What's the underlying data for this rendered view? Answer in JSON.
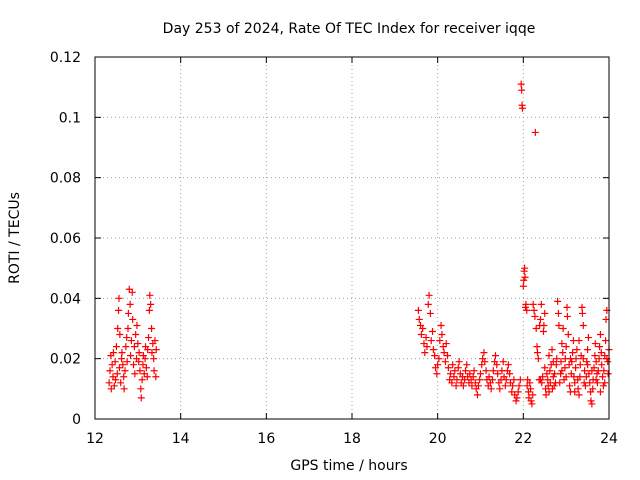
{
  "chart_data": {
    "type": "scatter",
    "title": "Day 253 of 2024, Rate Of TEC Index for receiver iqqe",
    "xlabel": "GPS time / hours",
    "ylabel": "ROTI / TECUs",
    "xlim": [
      12,
      24
    ],
    "ylim": [
      0,
      0.12
    ],
    "xticks": [
      12,
      14,
      16,
      18,
      20,
      22,
      24
    ],
    "yticks": [
      0,
      0.02,
      0.04,
      0.06,
      0.08,
      0.1,
      0.12
    ],
    "ytick_labels": [
      "0",
      "0.02",
      "0.04",
      "0.06",
      "0.08",
      "0.1",
      "0.12"
    ],
    "grid": true,
    "marker": "+",
    "color": "#ff0000",
    "series": [
      {
        "name": "ROTI",
        "points": [
          [
            12.33,
            0.012
          ],
          [
            12.35,
            0.016
          ],
          [
            12.37,
            0.021
          ],
          [
            12.38,
            0.01
          ],
          [
            12.4,
            0.018
          ],
          [
            12.42,
            0.014
          ],
          [
            12.43,
            0.022
          ],
          [
            12.45,
            0.011
          ],
          [
            12.47,
            0.019
          ],
          [
            12.48,
            0.013
          ],
          [
            12.5,
            0.024
          ],
          [
            12.52,
            0.015
          ],
          [
            12.53,
            0.03
          ],
          [
            12.55,
            0.036
          ],
          [
            12.56,
            0.04
          ],
          [
            12.57,
            0.017
          ],
          [
            12.58,
            0.028
          ],
          [
            12.6,
            0.012
          ],
          [
            12.62,
            0.02
          ],
          [
            12.63,
            0.022
          ],
          [
            12.65,
            0.018
          ],
          [
            12.67,
            0.014
          ],
          [
            12.68,
            0.01
          ],
          [
            12.7,
            0.016
          ],
          [
            12.72,
            0.024
          ],
          [
            12.74,
            0.027
          ],
          [
            12.75,
            0.019
          ],
          [
            12.77,
            0.03
          ],
          [
            12.78,
            0.035
          ],
          [
            12.8,
            0.043
          ],
          [
            12.82,
            0.038
          ],
          [
            12.83,
            0.021
          ],
          [
            12.85,
            0.026
          ],
          [
            12.87,
            0.042
          ],
          [
            12.88,
            0.033
          ],
          [
            12.9,
            0.018
          ],
          [
            12.92,
            0.024
          ],
          [
            12.93,
            0.015
          ],
          [
            12.95,
            0.028
          ],
          [
            12.97,
            0.02
          ],
          [
            12.98,
            0.031
          ],
          [
            13.0,
            0.025
          ],
          [
            13.02,
            0.019
          ],
          [
            13.03,
            0.022
          ],
          [
            13.05,
            0.016
          ],
          [
            13.07,
            0.01
          ],
          [
            13.08,
            0.007
          ],
          [
            13.1,
            0.013
          ],
          [
            13.12,
            0.018
          ],
          [
            13.13,
            0.021
          ],
          [
            13.15,
            0.015
          ],
          [
            13.17,
            0.02
          ],
          [
            13.18,
            0.024
          ],
          [
            13.2,
            0.017
          ],
          [
            13.22,
            0.014
          ],
          [
            13.23,
            0.023
          ],
          [
            13.25,
            0.027
          ],
          [
            13.27,
            0.036
          ],
          [
            13.28,
            0.041
          ],
          [
            13.3,
            0.038
          ],
          [
            13.32,
            0.03
          ],
          [
            13.33,
            0.022
          ],
          [
            13.35,
            0.025
          ],
          [
            13.37,
            0.02
          ],
          [
            13.38,
            0.016
          ],
          [
            13.4,
            0.026
          ],
          [
            13.42,
            0.014
          ],
          [
            13.43,
            0.023
          ],
          [
            19.55,
            0.036
          ],
          [
            19.57,
            0.033
          ],
          [
            19.6,
            0.031
          ],
          [
            19.62,
            0.028
          ],
          [
            19.65,
            0.03
          ],
          [
            19.68,
            0.025
          ],
          [
            19.7,
            0.022
          ],
          [
            19.73,
            0.027
          ],
          [
            19.75,
            0.024
          ],
          [
            19.78,
            0.038
          ],
          [
            19.8,
            0.041
          ],
          [
            19.83,
            0.035
          ],
          [
            19.85,
            0.026
          ],
          [
            19.88,
            0.029
          ],
          [
            19.9,
            0.023
          ],
          [
            19.93,
            0.021
          ],
          [
            19.95,
            0.017
          ],
          [
            19.98,
            0.015
          ],
          [
            20.0,
            0.018
          ],
          [
            20.03,
            0.02
          ],
          [
            20.05,
            0.026
          ],
          [
            20.08,
            0.031
          ],
          [
            20.1,
            0.028
          ],
          [
            20.13,
            0.024
          ],
          [
            20.15,
            0.022
          ],
          [
            20.18,
            0.019
          ],
          [
            20.2,
            0.025
          ],
          [
            20.23,
            0.021
          ],
          [
            20.25,
            0.017
          ],
          [
            20.28,
            0.013
          ],
          [
            20.3,
            0.015
          ],
          [
            20.33,
            0.012
          ],
          [
            20.35,
            0.018
          ],
          [
            20.38,
            0.014
          ],
          [
            20.4,
            0.016
          ],
          [
            20.43,
            0.011
          ],
          [
            20.45,
            0.013
          ],
          [
            20.48,
            0.017
          ],
          [
            20.5,
            0.019
          ],
          [
            20.53,
            0.015
          ],
          [
            20.55,
            0.012
          ],
          [
            20.58,
            0.014
          ],
          [
            20.6,
            0.011
          ],
          [
            20.63,
            0.013
          ],
          [
            20.65,
            0.016
          ],
          [
            20.68,
            0.018
          ],
          [
            20.7,
            0.014
          ],
          [
            20.73,
            0.012
          ],
          [
            20.75,
            0.015
          ],
          [
            20.78,
            0.013
          ],
          [
            20.8,
            0.011
          ],
          [
            20.83,
            0.014
          ],
          [
            20.85,
            0.016
          ],
          [
            20.88,
            0.012
          ],
          [
            20.9,
            0.01
          ],
          [
            20.93,
            0.008
          ],
          [
            20.95,
            0.011
          ],
          [
            20.98,
            0.013
          ],
          [
            21.0,
            0.015
          ],
          [
            21.03,
            0.018
          ],
          [
            21.05,
            0.02
          ],
          [
            21.08,
            0.022
          ],
          [
            21.1,
            0.019
          ],
          [
            21.13,
            0.016
          ],
          [
            21.15,
            0.013
          ],
          [
            21.18,
            0.011
          ],
          [
            21.2,
            0.014
          ],
          [
            21.23,
            0.012
          ],
          [
            21.25,
            0.01
          ],
          [
            21.28,
            0.013
          ],
          [
            21.3,
            0.016
          ],
          [
            21.33,
            0.019
          ],
          [
            21.35,
            0.021
          ],
          [
            21.38,
            0.018
          ],
          [
            21.4,
            0.015
          ],
          [
            21.43,
            0.012
          ],
          [
            21.45,
            0.01
          ],
          [
            21.48,
            0.013
          ],
          [
            21.5,
            0.016
          ],
          [
            21.53,
            0.019
          ],
          [
            21.55,
            0.014
          ],
          [
            21.58,
            0.011
          ],
          [
            21.6,
            0.013
          ],
          [
            21.63,
            0.016
          ],
          [
            21.65,
            0.018
          ],
          [
            21.68,
            0.015
          ],
          [
            21.7,
            0.012
          ],
          [
            21.73,
            0.009
          ],
          [
            21.75,
            0.011
          ],
          [
            21.78,
            0.013
          ],
          [
            21.8,
            0.008
          ],
          [
            21.83,
            0.006
          ],
          [
            21.85,
            0.007
          ],
          [
            21.88,
            0.009
          ],
          [
            21.9,
            0.011
          ],
          [
            21.93,
            0.013
          ],
          [
            21.95,
            0.111
          ],
          [
            21.96,
            0.109
          ],
          [
            21.97,
            0.104
          ],
          [
            21.98,
            0.103
          ],
          [
            22.0,
            0.044
          ],
          [
            22.01,
            0.046
          ],
          [
            22.02,
            0.049
          ],
          [
            22.03,
            0.05
          ],
          [
            22.04,
            0.047
          ],
          [
            22.05,
            0.037
          ],
          [
            22.06,
            0.038
          ],
          [
            22.08,
            0.036
          ],
          [
            22.09,
            0.011
          ],
          [
            22.1,
            0.013
          ],
          [
            22.12,
            0.009
          ],
          [
            22.13,
            0.007
          ],
          [
            22.15,
            0.012
          ],
          [
            22.17,
            0.01
          ],
          [
            22.18,
            0.006
          ],
          [
            22.2,
            0.005
          ],
          [
            22.22,
            0.008
          ],
          [
            22.23,
            0.038
          ],
          [
            22.25,
            0.036
          ],
          [
            22.27,
            0.034
          ],
          [
            22.28,
            0.095
          ],
          [
            22.3,
            0.03
          ],
          [
            22.32,
            0.024
          ],
          [
            22.33,
            0.022
          ],
          [
            22.35,
            0.02
          ],
          [
            22.37,
            0.013
          ],
          [
            22.38,
            0.031
          ],
          [
            22.4,
            0.033
          ],
          [
            22.42,
            0.038
          ],
          [
            22.43,
            0.012
          ],
          [
            22.45,
            0.014
          ],
          [
            22.47,
            0.029
          ],
          [
            22.48,
            0.031
          ],
          [
            22.5,
            0.035
          ],
          [
            22.52,
            0.01
          ],
          [
            22.53,
            0.008
          ],
          [
            22.55,
            0.015
          ],
          [
            22.57,
            0.013
          ],
          [
            22.58,
            0.011
          ],
          [
            22.6,
            0.009
          ],
          [
            22.62,
            0.016
          ],
          [
            22.63,
            0.012
          ],
          [
            22.65,
            0.018
          ],
          [
            22.67,
            0.023
          ],
          [
            22.68,
            0.01
          ],
          [
            22.7,
            0.014
          ],
          [
            22.72,
            0.011
          ],
          [
            22.73,
            0.015
          ],
          [
            22.75,
            0.012
          ],
          [
            22.77,
            0.018
          ],
          [
            22.78,
            0.02
          ],
          [
            22.8,
            0.039
          ],
          [
            22.82,
            0.035
          ],
          [
            22.83,
            0.031
          ],
          [
            22.85,
            0.012
          ],
          [
            22.87,
            0.015
          ],
          [
            22.88,
            0.019
          ],
          [
            22.9,
            0.025
          ],
          [
            22.92,
            0.022
          ],
          [
            22.93,
            0.03
          ],
          [
            22.95,
            0.013
          ],
          [
            22.97,
            0.017
          ],
          [
            22.98,
            0.02
          ],
          [
            23.0,
            0.024
          ],
          [
            23.02,
            0.037
          ],
          [
            23.03,
            0.034
          ],
          [
            23.05,
            0.028
          ],
          [
            23.07,
            0.018
          ],
          [
            23.08,
            0.011
          ],
          [
            23.1,
            0.009
          ],
          [
            23.12,
            0.015
          ],
          [
            23.13,
            0.019
          ],
          [
            23.15,
            0.022
          ],
          [
            23.17,
            0.026
          ],
          [
            23.18,
            0.014
          ],
          [
            23.2,
            0.012
          ],
          [
            23.22,
            0.017
          ],
          [
            23.23,
            0.02
          ],
          [
            23.25,
            0.023
          ],
          [
            23.27,
            0.013
          ],
          [
            23.28,
            0.01
          ],
          [
            23.3,
            0.008
          ],
          [
            23.32,
            0.014
          ],
          [
            23.33,
            0.018
          ],
          [
            23.35,
            0.021
          ],
          [
            23.37,
            0.037
          ],
          [
            23.38,
            0.035
          ],
          [
            23.4,
            0.031
          ],
          [
            23.42,
            0.012
          ],
          [
            23.43,
            0.016
          ],
          [
            23.45,
            0.011
          ],
          [
            23.47,
            0.014
          ],
          [
            23.48,
            0.019
          ],
          [
            23.5,
            0.023
          ],
          [
            23.52,
            0.027
          ],
          [
            23.53,
            0.015
          ],
          [
            23.55,
            0.012
          ],
          [
            23.57,
            0.009
          ],
          [
            23.58,
            0.006
          ],
          [
            23.6,
            0.005
          ],
          [
            23.62,
            0.01
          ],
          [
            23.63,
            0.013
          ],
          [
            23.65,
            0.017
          ],
          [
            23.67,
            0.021
          ],
          [
            23.68,
            0.025
          ],
          [
            23.7,
            0.019
          ],
          [
            23.72,
            0.015
          ],
          [
            23.73,
            0.012
          ],
          [
            23.75,
            0.016
          ],
          [
            23.77,
            0.02
          ],
          [
            23.78,
            0.024
          ],
          [
            23.8,
            0.028
          ],
          [
            23.82,
            0.022
          ],
          [
            23.83,
            0.018
          ],
          [
            23.85,
            0.014
          ],
          [
            23.87,
            0.011
          ],
          [
            23.88,
            0.016
          ],
          [
            23.9,
            0.021
          ],
          [
            23.92,
            0.026
          ],
          [
            23.93,
            0.033
          ],
          [
            23.95,
            0.036
          ],
          [
            23.97,
            0.019
          ],
          [
            23.98,
            0.015
          ],
          [
            24.0,
            0.023
          ],
          [
            22.9,
            0.016
          ],
          [
            23.1,
            0.02
          ],
          [
            23.3,
            0.026
          ],
          [
            23.5,
            0.018
          ],
          [
            23.7,
            0.013
          ],
          [
            23.9,
            0.012
          ],
          [
            22.6,
            0.021
          ],
          [
            22.7,
            0.019
          ],
          [
            23.0,
            0.014
          ],
          [
            23.2,
            0.009
          ],
          [
            23.4,
            0.02
          ],
          [
            23.6,
            0.016
          ],
          [
            23.8,
            0.009
          ],
          [
            23.95,
            0.02
          ],
          [
            22.5,
            0.017
          ],
          [
            22.4,
            0.013
          ]
        ]
      }
    ]
  }
}
